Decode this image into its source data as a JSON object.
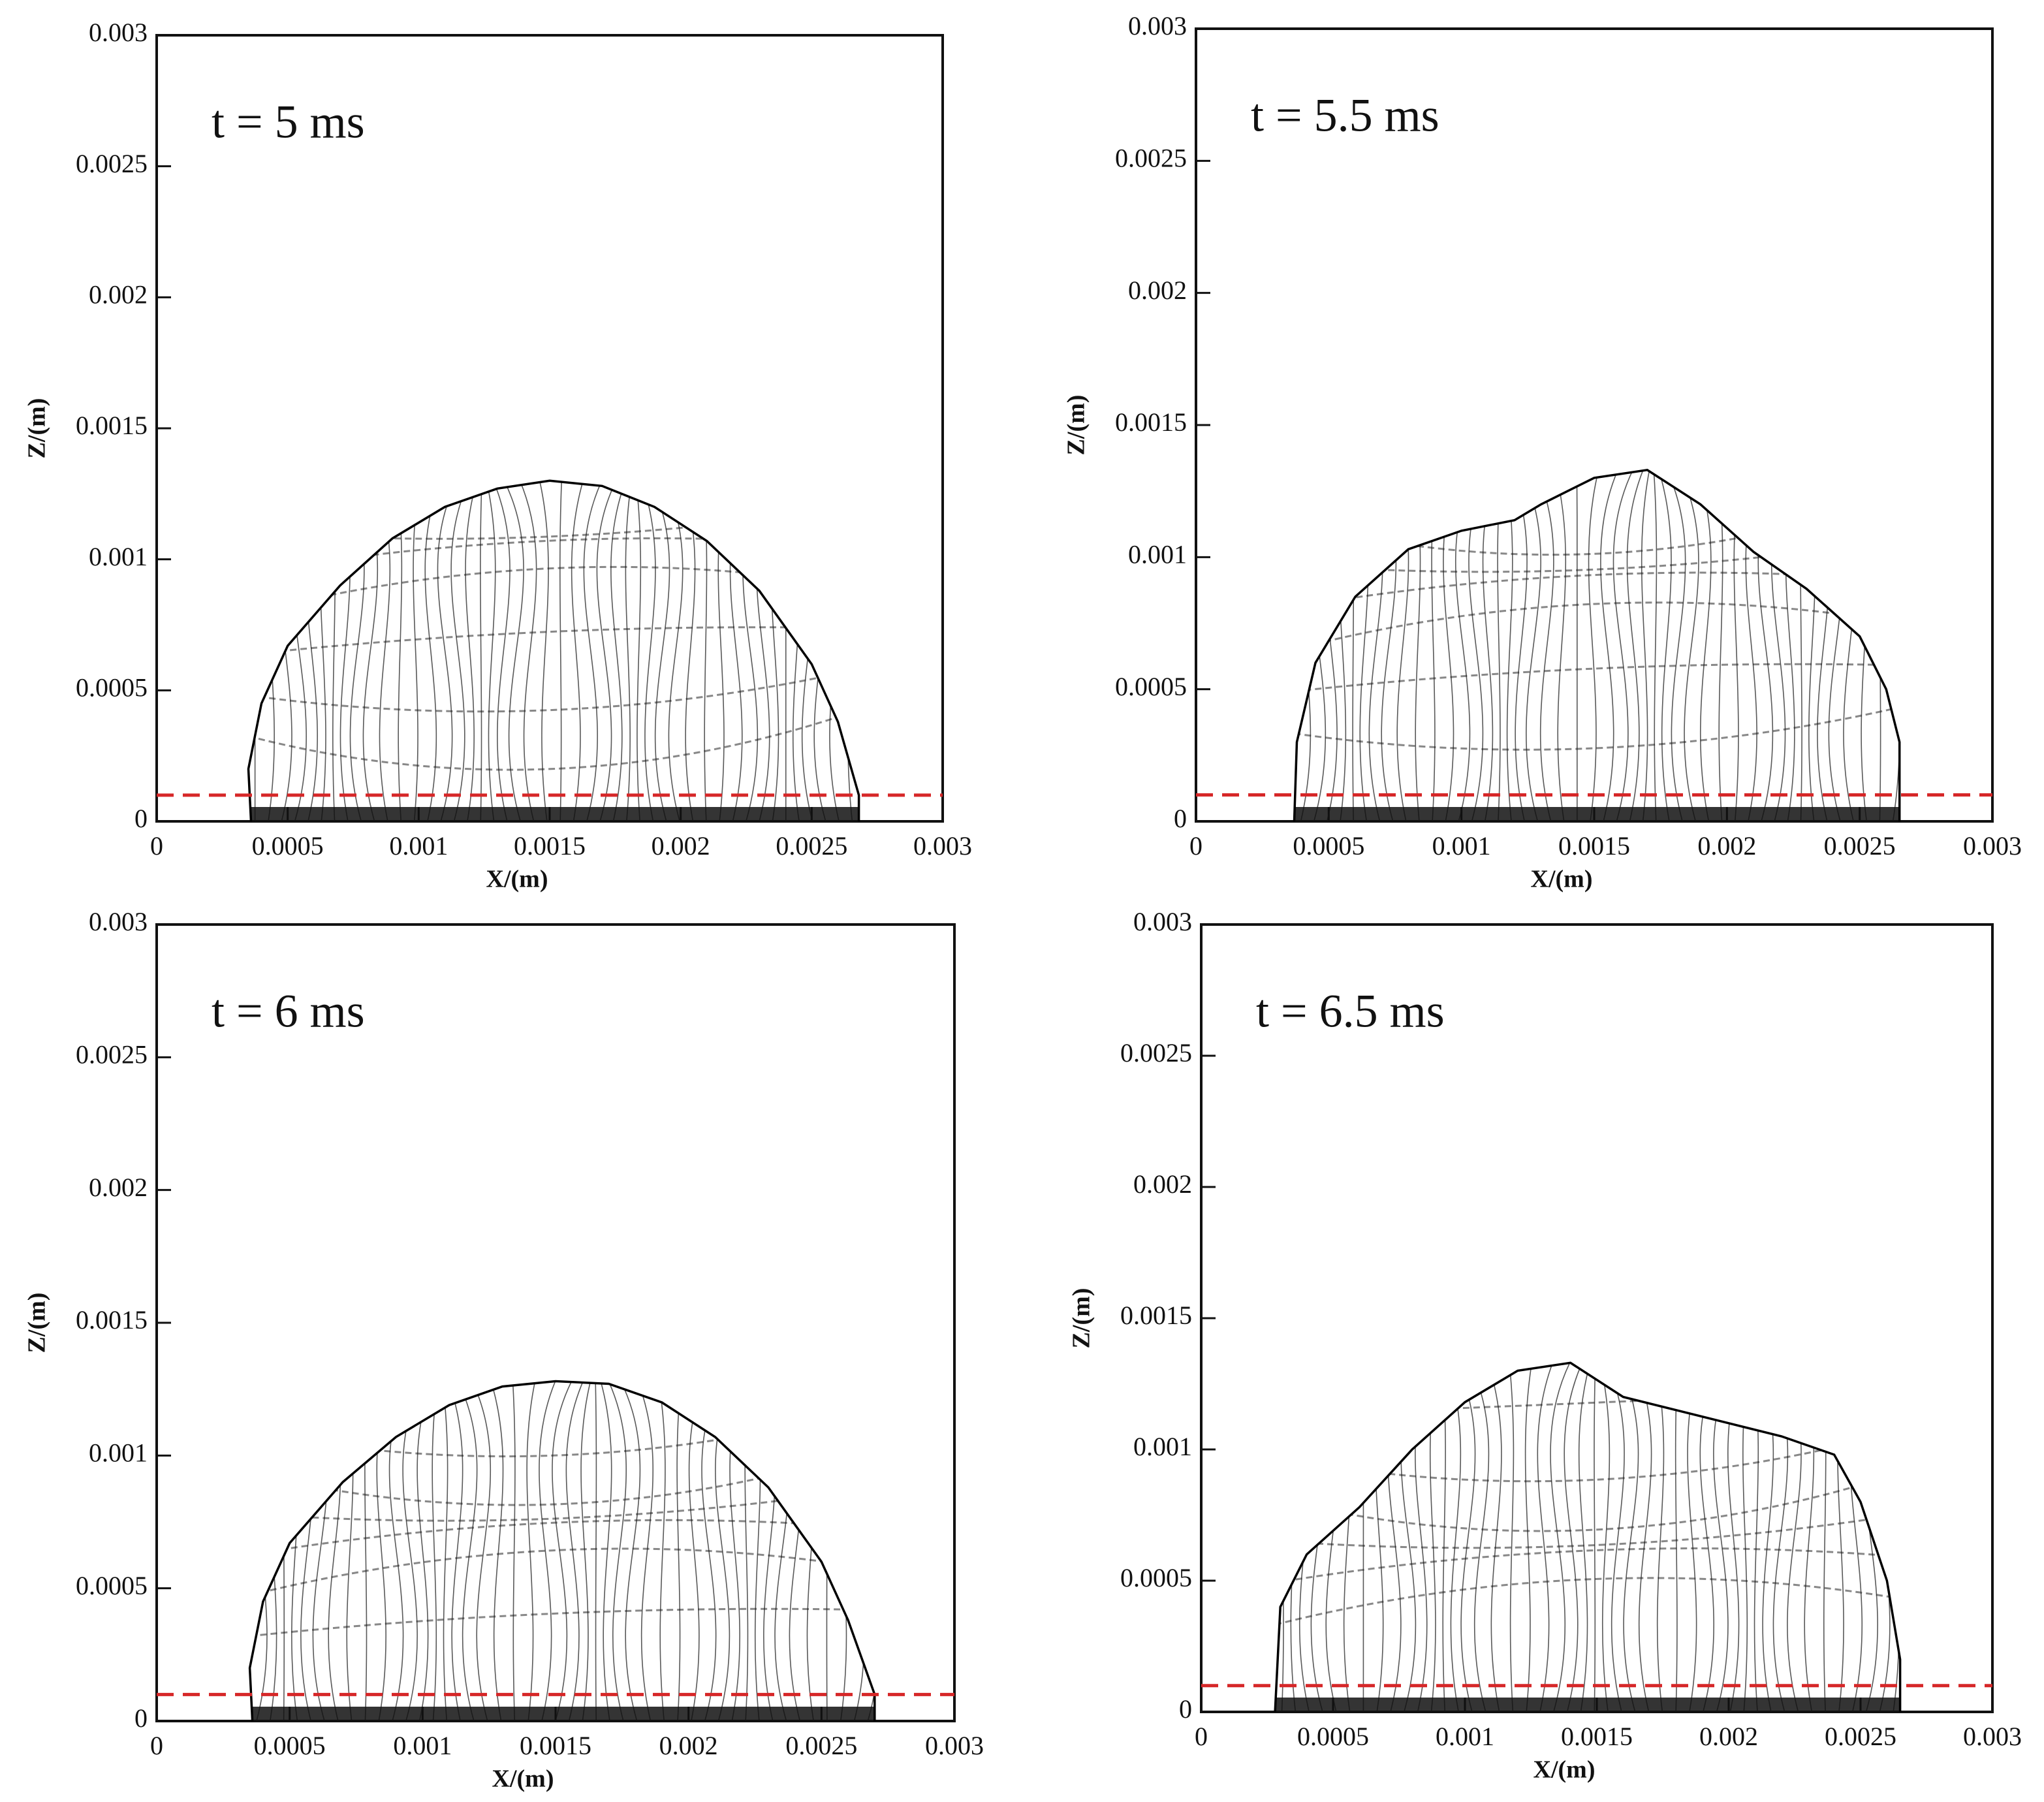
{
  "chart_data": [
    {
      "type": "line",
      "annotation": "t = 5 ms",
      "x_label": "X/(m)",
      "y_label": "Z/(m)",
      "xlim": [
        0,
        0.003
      ],
      "ylim": [
        0,
        0.003
      ],
      "xticks": [
        0,
        0.0005,
        0.001,
        0.0015,
        0.002,
        0.0025,
        0.003
      ],
      "yticks": [
        0,
        0.0005,
        0.001,
        0.0015,
        0.002,
        0.0025,
        0.003
      ],
      "series": [
        {
          "color": "#000000",
          "x": [
            0.00036,
            0.00035,
            0.0004,
            0.0005,
            0.0007,
            0.0009,
            0.0011,
            0.0013,
            0.0015,
            0.0017,
            0.0019,
            0.0021,
            0.0023,
            0.0025,
            0.0026,
            0.00268,
            0.00268
          ],
          "values": [
            0,
            0.0002,
            0.00045,
            0.00067,
            0.0009,
            0.00108,
            0.0012,
            0.00127,
            0.0013,
            0.00128,
            0.0012,
            0.00107,
            0.00088,
            0.0006,
            0.00038,
            0.0001,
            0
          ]
        }
      ],
      "reference_line": {
        "value": 0.0001,
        "color": "#d62728",
        "style": "dashed"
      }
    },
    {
      "type": "line",
      "annotation": "t = 5.5 ms",
      "x_label": "X/(m)",
      "y_label": "Z/(m)",
      "xlim": [
        0,
        0.003
      ],
      "ylim": [
        0,
        0.003
      ],
      "xticks": [
        0,
        0.0005,
        0.001,
        0.0015,
        0.002,
        0.0025,
        0.003
      ],
      "yticks": [
        0,
        0.0005,
        0.001,
        0.0015,
        0.002,
        0.0025,
        0.003
      ],
      "series": [
        {
          "color": "#000000",
          "x": [
            0.00037,
            0.00038,
            0.00045,
            0.0006,
            0.0008,
            0.001,
            0.0012,
            0.0013,
            0.0015,
            0.0017,
            0.0019,
            0.0021,
            0.0023,
            0.0025,
            0.0026,
            0.00265,
            0.00265
          ],
          "values": [
            0,
            0.0003,
            0.0006,
            0.00085,
            0.00103,
            0.0011,
            0.00114,
            0.0012,
            0.0013,
            0.00133,
            0.0012,
            0.00102,
            0.00088,
            0.0007,
            0.0005,
            0.0003,
            0
          ]
        }
      ],
      "reference_line": {
        "value": 0.0001,
        "color": "#d62728",
        "style": "dashed"
      }
    },
    {
      "type": "line",
      "annotation": "t = 6 ms",
      "x_label": "X/(m)",
      "y_label": "Z/(m)",
      "xlim": [
        0,
        0.003
      ],
      "ylim": [
        0,
        0.003
      ],
      "xticks": [
        0,
        0.0005,
        0.001,
        0.0015,
        0.002,
        0.0025,
        0.003
      ],
      "yticks": [
        0,
        0.0005,
        0.001,
        0.0015,
        0.002,
        0.0025,
        0.003
      ],
      "series": [
        {
          "color": "#000000",
          "x": [
            0.00036,
            0.00035,
            0.0004,
            0.0005,
            0.0007,
            0.0009,
            0.0011,
            0.0013,
            0.0015,
            0.0017,
            0.0019,
            0.0021,
            0.0023,
            0.0025,
            0.0026,
            0.0027,
            0.0027
          ],
          "values": [
            0,
            0.0002,
            0.00045,
            0.00067,
            0.0009,
            0.00107,
            0.00119,
            0.00126,
            0.00128,
            0.00127,
            0.0012,
            0.00107,
            0.00088,
            0.0006,
            0.00038,
            0.0001,
            0
          ]
        }
      ],
      "reference_line": {
        "value": 0.0001,
        "color": "#d62728",
        "style": "dashed"
      }
    },
    {
      "type": "line",
      "annotation": "t = 6.5 ms",
      "x_label": "X/(m)",
      "y_label": "Z/(m)",
      "xlim": [
        0,
        0.003
      ],
      "ylim": [
        0,
        0.003
      ],
      "xticks": [
        0,
        0.0005,
        0.001,
        0.0015,
        0.002,
        0.0025,
        0.003
      ],
      "yticks": [
        0,
        0.0005,
        0.001,
        0.0015,
        0.002,
        0.0025,
        0.003
      ],
      "series": [
        {
          "color": "#000000",
          "x": [
            0.00028,
            0.0003,
            0.0004,
            0.0006,
            0.0008,
            0.001,
            0.0012,
            0.0014,
            0.0016,
            0.0018,
            0.002,
            0.0022,
            0.0024,
            0.0025,
            0.0026,
            0.00265,
            0.00265
          ],
          "values": [
            0,
            0.0004,
            0.0006,
            0.00078,
            0.001,
            0.00118,
            0.0013,
            0.00133,
            0.0012,
            0.00115,
            0.0011,
            0.00105,
            0.00098,
            0.0008,
            0.0005,
            0.0002,
            0
          ]
        }
      ],
      "reference_line": {
        "value": 0.0001,
        "color": "#d62728",
        "style": "dashed"
      }
    }
  ]
}
